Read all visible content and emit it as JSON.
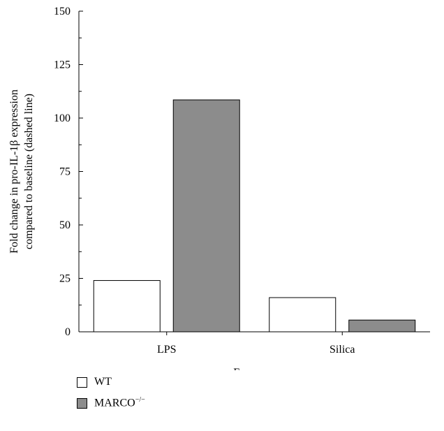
{
  "chart_data": {
    "type": "bar",
    "categories": [
      "LPS",
      "Silica"
    ],
    "series": [
      {
        "name": "WT",
        "values": [
          24,
          16
        ],
        "color": "#ffffff"
      },
      {
        "name": "MARCO",
        "name_sup": "−/−",
        "values": [
          108.5,
          5.5
        ],
        "color": "#8c8c8c"
      }
    ],
    "xlabel": "Exposure",
    "ylabel_lines": [
      "Fold change in pro-IL-1β expression",
      "compared to baseline (dashed line)"
    ],
    "ylim": [
      0,
      150
    ],
    "yticks": [
      0,
      25,
      50,
      75,
      100,
      125,
      150
    ],
    "minor_step": 12.5,
    "grid": false,
    "legend_position": "bottom-left"
  }
}
